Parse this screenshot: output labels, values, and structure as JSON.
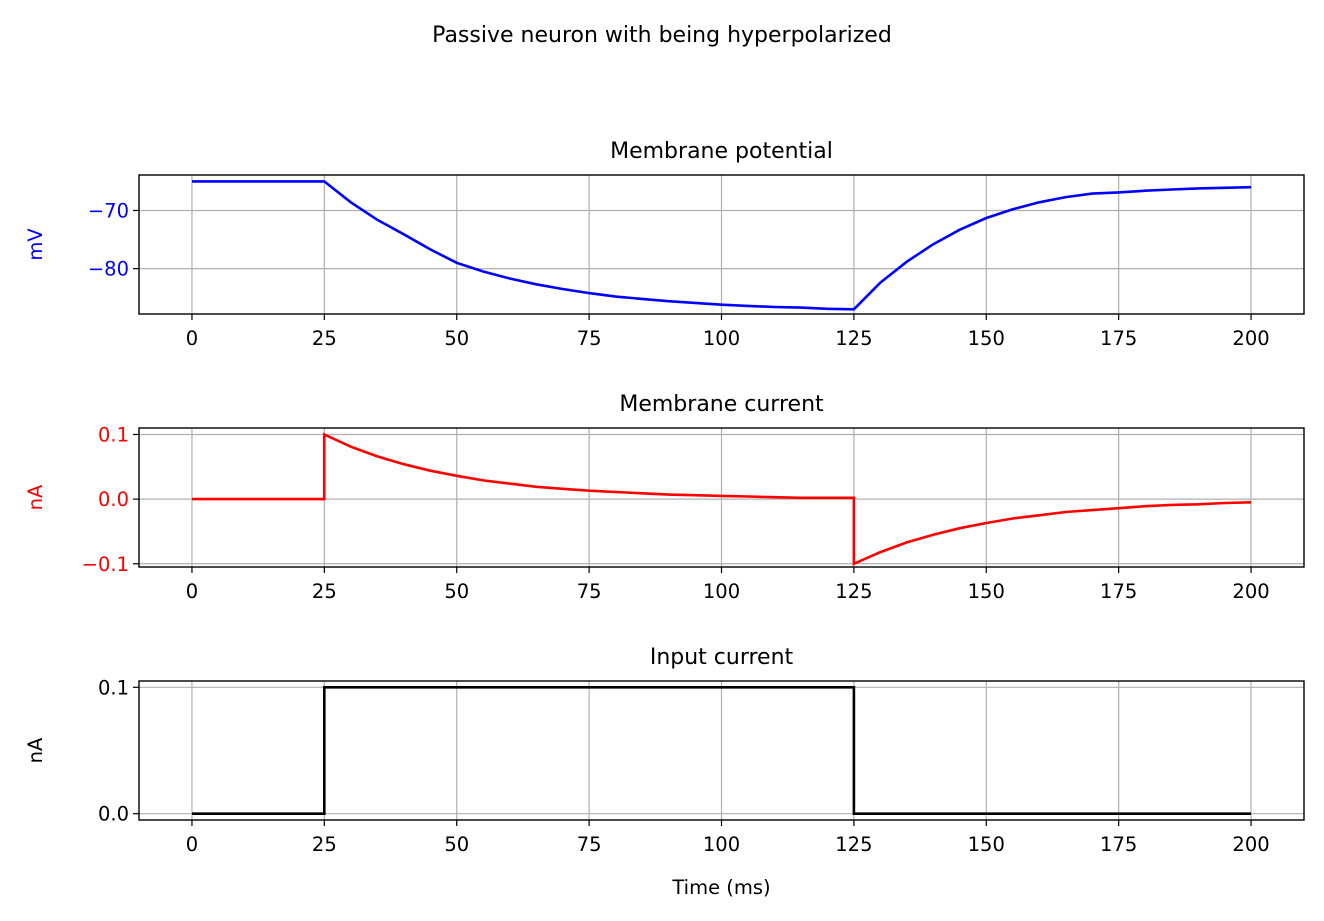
{
  "suptitle": "Passive neuron with being hyperpolarized",
  "chart_data": [
    {
      "type": "line",
      "title": "Membrane potential",
      "ylabel": "mV",
      "xlabel": "",
      "color": "#0000ff",
      "xlim": [
        -10,
        210
      ],
      "ylim": [
        -87.8,
        -63.9
      ],
      "xticks": [
        0,
        25,
        50,
        75,
        100,
        125,
        150,
        175,
        200
      ],
      "yticks": [
        -70,
        -80
      ],
      "ytick_labels": [
        "−70",
        "−80"
      ],
      "grid": true,
      "series": [
        {
          "x": [
            0,
            25,
            30,
            35,
            40,
            45,
            50,
            55,
            60,
            65,
            70,
            75,
            80,
            85,
            90,
            95,
            100,
            105,
            110,
            115,
            120,
            125,
            130,
            135,
            140,
            145,
            150,
            155,
            160,
            165,
            170,
            175,
            180,
            185,
            190,
            195,
            200
          ],
          "values": [
            -65.0,
            -65.0,
            -68.6,
            -71.6,
            -74.1,
            -76.7,
            -79.0,
            -80.5,
            -81.7,
            -82.7,
            -83.5,
            -84.2,
            -84.8,
            -85.2,
            -85.6,
            -85.9,
            -86.2,
            -86.4,
            -86.6,
            -86.7,
            -86.9,
            -87.0,
            -82.4,
            -78.8,
            -75.8,
            -73.3,
            -71.3,
            -69.8,
            -68.6,
            -67.7,
            -67.1,
            -66.9,
            -66.6,
            -66.4,
            -66.2,
            -66.1,
            -66.0
          ]
        }
      ]
    },
    {
      "type": "line",
      "title": "Membrane current",
      "ylabel": "nA",
      "xlabel": "",
      "color": "#ff0000",
      "xlim": [
        -10,
        210
      ],
      "ylim": [
        -0.105,
        0.11
      ],
      "xticks": [
        0,
        25,
        50,
        75,
        100,
        125,
        150,
        175,
        200
      ],
      "yticks": [
        0.1,
        0.0,
        -0.1
      ],
      "ytick_labels": [
        "0.1",
        "0.0",
        "−0.1"
      ],
      "grid": true,
      "series": [
        {
          "x": [
            0,
            25,
            25,
            30,
            35,
            40,
            45,
            50,
            55,
            60,
            65,
            70,
            75,
            80,
            85,
            90,
            95,
            100,
            105,
            110,
            115,
            120,
            125,
            125,
            130,
            135,
            140,
            145,
            150,
            155,
            160,
            165,
            170,
            175,
            180,
            185,
            190,
            195,
            200
          ],
          "values": [
            0.0,
            0.0,
            0.1,
            0.081,
            0.066,
            0.054,
            0.044,
            0.036,
            0.029,
            0.024,
            0.019,
            0.016,
            0.013,
            0.011,
            0.009,
            0.007,
            0.006,
            0.005,
            0.004,
            0.003,
            0.002,
            0.002,
            0.002,
            -0.1,
            -0.082,
            -0.067,
            -0.055,
            -0.045,
            -0.037,
            -0.03,
            -0.025,
            -0.02,
            -0.017,
            -0.014,
            -0.011,
            -0.009,
            -0.008,
            -0.006,
            -0.005
          ]
        }
      ]
    },
    {
      "type": "line",
      "title": "Input current",
      "ylabel": "nA",
      "xlabel": "Time (ms)",
      "color": "#000000",
      "xlim": [
        -10,
        210
      ],
      "ylim": [
        -0.005,
        0.105
      ],
      "xticks": [
        0,
        25,
        50,
        75,
        100,
        125,
        150,
        175,
        200
      ],
      "yticks": [
        0.1,
        0.0
      ],
      "ytick_labels": [
        "0.1",
        "0.0"
      ],
      "grid": true,
      "series": [
        {
          "x": [
            0,
            25,
            25,
            125,
            125,
            200
          ],
          "values": [
            0.0,
            0.0,
            0.1,
            0.1,
            0.0,
            0.0
          ]
        }
      ]
    }
  ]
}
